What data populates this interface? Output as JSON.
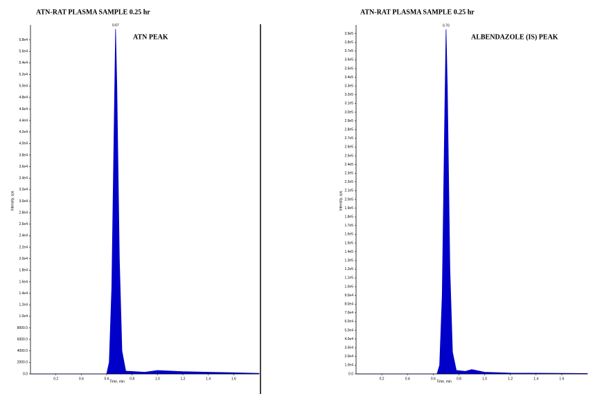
{
  "chart_data": [
    {
      "type": "area",
      "title": "ATN-RAT PLASMA SAMPLE 0.25 hr",
      "annotation": "ATN PEAK",
      "peak_label": 0.67,
      "x_label": "Time, min",
      "y_label": "Intensity, cps",
      "color": "#0000c8",
      "x": [
        0.0,
        0.6,
        0.62,
        0.64,
        0.66,
        0.67,
        0.68,
        0.7,
        0.72,
        0.75,
        0.9,
        1.0,
        1.2,
        1.4,
        1.6,
        1.8
      ],
      "values": [
        0,
        0,
        2000,
        15000,
        45000,
        59900,
        50000,
        20000,
        4000,
        500,
        300,
        600,
        400,
        300,
        200,
        100
      ],
      "xlim": [
        0.0,
        1.8
      ],
      "ylim": [
        0,
        60600
      ],
      "xticks": [
        0.2,
        0.4,
        0.6,
        0.8,
        {
          "value": 1,
          "label": "1.0"
        },
        1.2,
        1.4,
        1.6
      ],
      "yticks": [
        {
          "value": 0,
          "label": "0.0"
        },
        {
          "value": 2000,
          "label": "2000.0"
        },
        {
          "value": 4000,
          "label": "4000.0"
        },
        {
          "value": 6000,
          "label": "6000.0"
        },
        {
          "value": 8000,
          "label": "8000.0"
        },
        {
          "value": 10000,
          "label": "1.0e4"
        },
        {
          "value": 12000,
          "label": "1.2e4"
        },
        {
          "value": 14000,
          "label": "1.4e4"
        },
        {
          "value": 16000,
          "label": "1.6e4"
        },
        {
          "value": 18000,
          "label": "1.8e4"
        },
        {
          "value": 20000,
          "label": "2.0e4"
        },
        {
          "value": 22000,
          "label": "2.2e4"
        },
        {
          "value": 24000,
          "label": "2.4e4"
        },
        {
          "value": 26000,
          "label": "2.6e4"
        },
        {
          "value": 28000,
          "label": "2.8e4"
        },
        {
          "value": 30000,
          "label": "3.0e4"
        },
        {
          "value": 32000,
          "label": "3.2e4"
        },
        {
          "value": 34000,
          "label": "3.4e4"
        },
        {
          "value": 36000,
          "label": "3.6e4"
        },
        {
          "value": 38000,
          "label": "3.8e4"
        },
        {
          "value": 40000,
          "label": "4.0e4"
        },
        {
          "value": 42000,
          "label": "4.2e4"
        },
        {
          "value": 44000,
          "label": "4.4e4"
        },
        {
          "value": 46000,
          "label": "4.6e4"
        },
        {
          "value": 48000,
          "label": "4.8e4"
        },
        {
          "value": 50000,
          "label": "5.0e4"
        },
        {
          "value": 52000,
          "label": "5.2e4"
        },
        {
          "value": 54000,
          "label": "5.4e4"
        },
        {
          "value": 56000,
          "label": "5.6e4"
        },
        {
          "value": 58000,
          "label": "5.8e4"
        }
      ]
    },
    {
      "type": "area",
      "title": "ATN-RAT PLASMA SAMPLE 0.25 hr",
      "annotation": "ALBENDAZOLE (IS) PEAK",
      "peak_label": {
        "value": 0.7,
        "label": "0.70"
      },
      "x_label": "Time, min",
      "y_label": "Intensity, cps",
      "color": "#0000c8",
      "x": [
        0.0,
        0.63,
        0.65,
        0.67,
        0.69,
        0.7,
        0.71,
        0.73,
        0.75,
        0.78,
        0.85,
        0.9,
        1.0,
        1.2,
        1.5,
        1.8
      ],
      "values": [
        0,
        0,
        10000,
        90000,
        300000,
        395000,
        330000,
        120000,
        25000,
        4000,
        3000,
        5000,
        2000,
        1000,
        800,
        500
      ],
      "xlim": [
        0.0,
        1.8
      ],
      "ylim": [
        0,
        400000
      ],
      "xticks": [
        0.2,
        0.4,
        0.6,
        0.8,
        {
          "value": 1,
          "label": "1.0"
        },
        1.2,
        1.4,
        1.6
      ],
      "yticks": [
        {
          "value": 0,
          "label": "0.0"
        },
        {
          "value": 10000,
          "label": "1.0e4"
        },
        {
          "value": 20000,
          "label": "2.0e4"
        },
        {
          "value": 30000,
          "label": "3.0e4"
        },
        {
          "value": 40000,
          "label": "4.0e4"
        },
        {
          "value": 50000,
          "label": "5.0e4"
        },
        {
          "value": 60000,
          "label": "6.0e4"
        },
        {
          "value": 70000,
          "label": "7.0e4"
        },
        {
          "value": 80000,
          "label": "8.0e4"
        },
        {
          "value": 90000,
          "label": "9.0e4"
        },
        {
          "value": 100000,
          "label": "1.0e5"
        },
        {
          "value": 110000,
          "label": "1.1e5"
        },
        {
          "value": 120000,
          "label": "1.2e5"
        },
        {
          "value": 130000,
          "label": "1.3e5"
        },
        {
          "value": 140000,
          "label": "1.4e5"
        },
        {
          "value": 150000,
          "label": "1.5e5"
        },
        {
          "value": 160000,
          "label": "1.6e5"
        },
        {
          "value": 170000,
          "label": "1.7e5"
        },
        {
          "value": 180000,
          "label": "1.8e5"
        },
        {
          "value": 190000,
          "label": "1.9e5"
        },
        {
          "value": 200000,
          "label": "2.0e5"
        },
        {
          "value": 210000,
          "label": "2.1e5"
        },
        {
          "value": 220000,
          "label": "2.2e5"
        },
        {
          "value": 230000,
          "label": "2.3e5"
        },
        {
          "value": 240000,
          "label": "2.4e5"
        },
        {
          "value": 250000,
          "label": "2.5e5"
        },
        {
          "value": 260000,
          "label": "2.6e5"
        },
        {
          "value": 270000,
          "label": "2.7e5"
        },
        {
          "value": 280000,
          "label": "2.8e5"
        },
        {
          "value": 290000,
          "label": "2.9e5"
        },
        {
          "value": 300000,
          "label": "3.0e5"
        },
        {
          "value": 310000,
          "label": "3.1e5"
        },
        {
          "value": 320000,
          "label": "3.2e5"
        },
        {
          "value": 330000,
          "label": "3.3e5"
        },
        {
          "value": 340000,
          "label": "3.4e5"
        },
        {
          "value": 350000,
          "label": "3.5e5"
        },
        {
          "value": 360000,
          "label": "3.6e5"
        },
        {
          "value": 370000,
          "label": "3.7e5"
        },
        {
          "value": 380000,
          "label": "3.8e5"
        },
        {
          "value": 390000,
          "label": "3.9e5"
        }
      ]
    }
  ]
}
